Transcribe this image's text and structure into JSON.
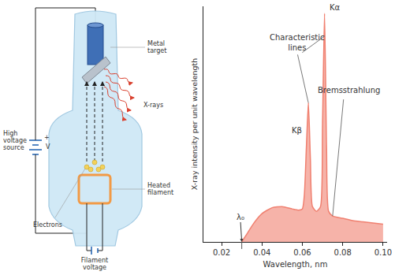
{
  "diagram": {
    "labels": {
      "target": "Metal target",
      "source": "High voltage source",
      "voltage": "V",
      "plus": "+",
      "xrays": "X-rays",
      "filament": "Heated filament",
      "electrons": "Electrons",
      "filament_voltage": "Filament voltage"
    }
  },
  "chart_data": {
    "type": "area",
    "x_label": "Wavelength, nm",
    "y_label": "X-ray intensity per unit wavelength",
    "x": [
      0.03,
      0.033,
      0.036,
      0.04,
      0.045,
      0.05,
      0.055,
      0.058,
      0.06,
      0.061,
      0.062,
      0.063,
      0.064,
      0.065,
      0.067,
      0.069,
      0.07,
      0.071,
      0.072,
      0.073,
      0.075,
      0.08,
      0.085,
      0.09,
      0.095,
      0.1
    ],
    "values": [
      0,
      0.04,
      0.08,
      0.12,
      0.145,
      0.15,
      0.14,
      0.135,
      0.14,
      0.2,
      0.4,
      0.59,
      0.35,
      0.15,
      0.13,
      0.15,
      0.5,
      0.97,
      0.4,
      0.13,
      0.11,
      0.1,
      0.09,
      0.085,
      0.08,
      0.075
    ],
    "color": "#f08070",
    "xlim": [
      0.011,
      0.102
    ],
    "ylim": [
      0,
      1
    ],
    "xticks": [
      0.02,
      0.04,
      0.06,
      0.08,
      {
        "value": 0.1,
        "label": "0.10"
      }
    ],
    "tick_labels": "x",
    "grid": false,
    "annotations": {
      "lines": "Characteristic lines",
      "k_alpha": "Kα",
      "k_beta": "Kβ",
      "continuous": "Bremsstrahlung",
      "cutoff": "λ₀"
    }
  }
}
